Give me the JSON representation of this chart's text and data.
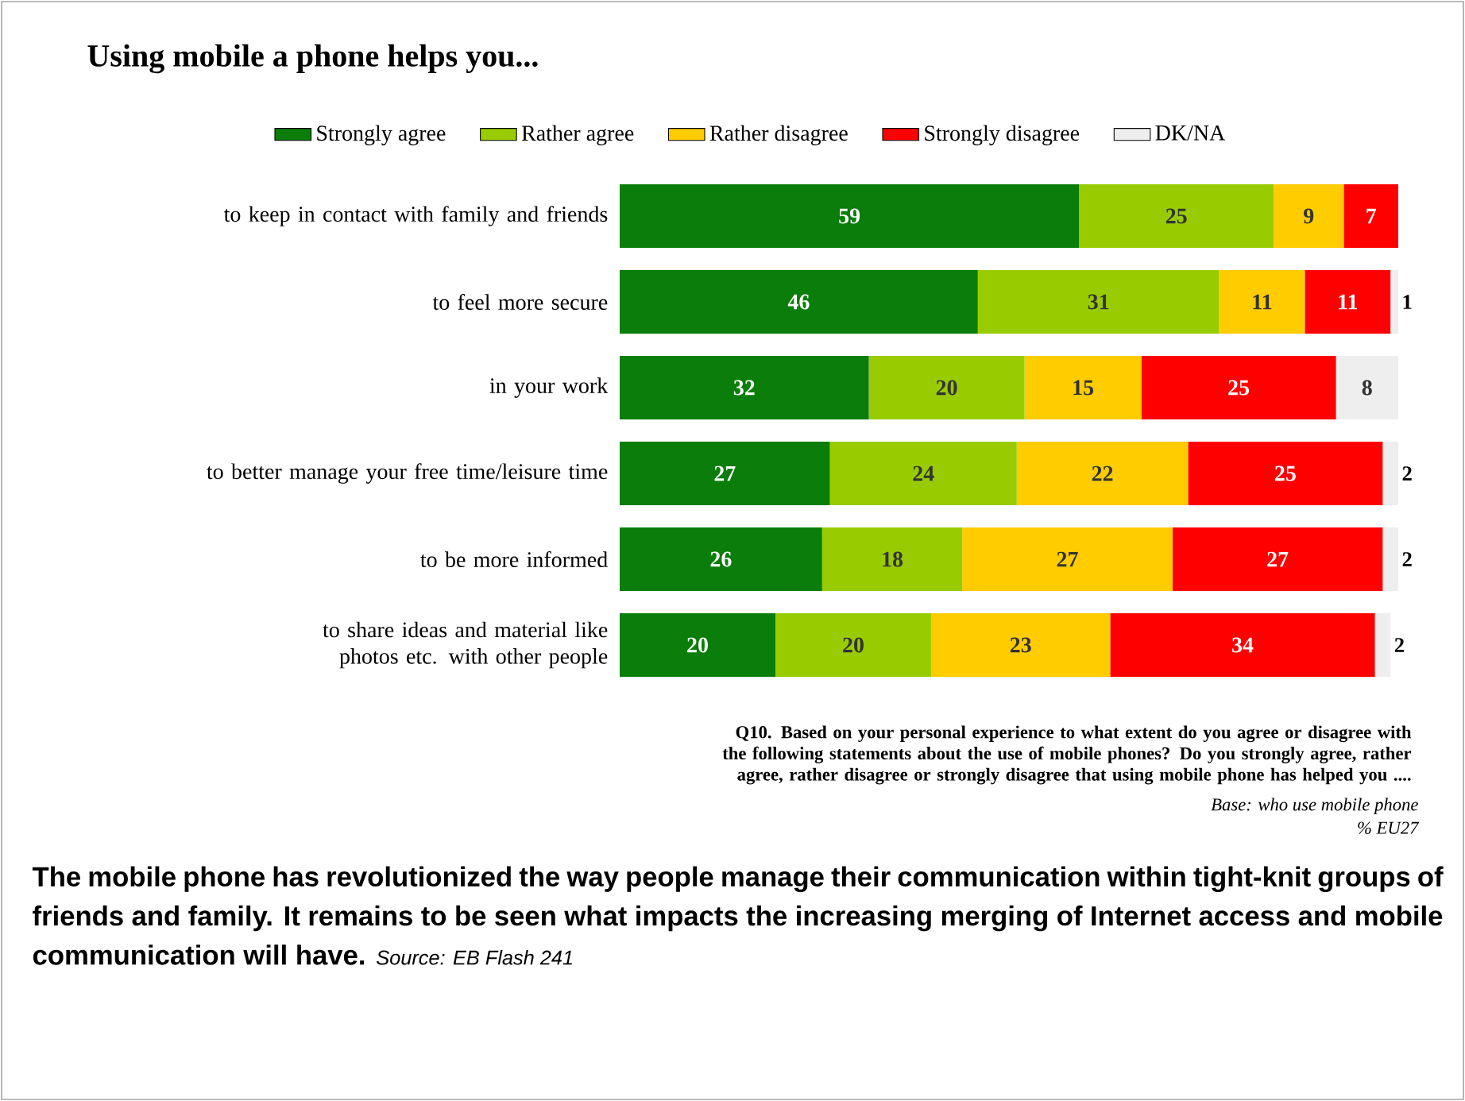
{
  "chart_data": {
    "type": "bar",
    "orientation": "horizontal",
    "stacked": true,
    "title": "Using mobile a phone helps you...",
    "categories": [
      "to keep in contact with family and friends",
      "to feel more secure",
      "in your work",
      "to better manage your free time/leisure time",
      "to be more informed",
      "to share ideas and material like photos etc. with other people"
    ],
    "series": [
      {
        "name": "Strongly agree",
        "color": "#0a7d0a",
        "values": [
          59,
          46,
          32,
          27,
          26,
          20
        ]
      },
      {
        "name": "Rather agree",
        "color": "#99cc00",
        "values": [
          25,
          31,
          20,
          24,
          18,
          20
        ]
      },
      {
        "name": "Rather disagree",
        "color": "#ffcc00",
        "values": [
          9,
          11,
          15,
          22,
          27,
          23
        ]
      },
      {
        "name": "Strongly disagree",
        "color": "#ff0000",
        "values": [
          7,
          11,
          25,
          25,
          27,
          34
        ]
      },
      {
        "name": "DK/NA",
        "color": "#eeeeee",
        "values": [
          null,
          1,
          8,
          2,
          2,
          2
        ]
      }
    ],
    "data_labels": true,
    "legend": "top",
    "tick_labels": "y",
    "annotations": [
      "Q10. Based on your personal experience to what extent do you agree or disagree with the following statements about the use of mobile phones? Do you strongly agree, rather agree, rather disagree or strongly disagree that  using mobile phone has helped you ....",
      "Base:  who use mobile phone",
      "% EU27",
      "The mobile phone has revolutionized the way people manage their communication within tight-knit groups of friends and family. It remains to be seen what impacts the increasing merging of Internet access and mobile communication will have.",
      "Source: EB Flash 241"
    ]
  }
}
